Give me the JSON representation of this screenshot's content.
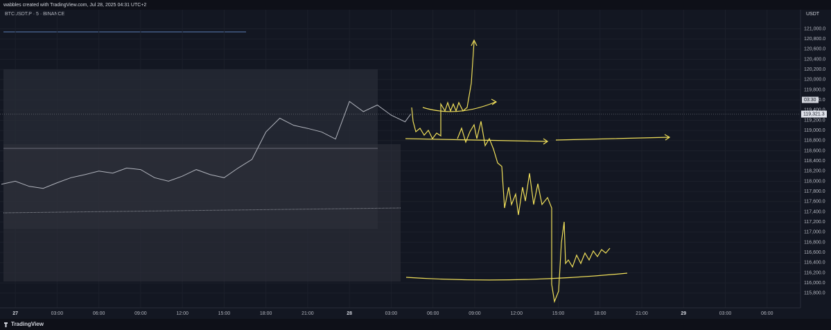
{
  "header": {
    "credit": "wabbles created with TradingView.com, Jul 28, 2025 04:31 UTC+2"
  },
  "chart_data": {
    "type": "line",
    "symbol": "BTCUSDT.P · 5 · BINANCE",
    "currency": "USDT",
    "series": [
      {
        "name": "BTCUSDT.P",
        "color": "#b2b5be",
        "x": [
          -1,
          0,
          1,
          2,
          3,
          4,
          5,
          6,
          7,
          8,
          9,
          10,
          11,
          12,
          13,
          14,
          15,
          16,
          17,
          18,
          19,
          20,
          21,
          22,
          23,
          24,
          25,
          26,
          27,
          28,
          28.4
        ],
        "values": [
          117940,
          118000,
          117900,
          117860,
          117970,
          118070,
          118130,
          118200,
          118160,
          118260,
          118230,
          118070,
          118000,
          118100,
          118230,
          118130,
          118070,
          118260,
          118430,
          118970,
          119240,
          119100,
          119040,
          118970,
          118830,
          119570,
          119370,
          119500,
          119300,
          119170,
          119321.3
        ]
      }
    ],
    "xlim": [
      -1.1,
      56.4
    ],
    "xticks": [
      {
        "value": 0,
        "label": "27"
      },
      {
        "value": 3,
        "label": "03:00"
      },
      {
        "value": 6,
        "label": "06:00"
      },
      {
        "value": 9,
        "label": "09:00"
      },
      {
        "value": 12,
        "label": "12:00"
      },
      {
        "value": 15,
        "label": "15:00"
      },
      {
        "value": 18,
        "label": "18:00"
      },
      {
        "value": 21,
        "label": "21:00"
      },
      {
        "value": 24,
        "label": "28"
      },
      {
        "value": 27,
        "label": "03:00"
      },
      {
        "value": 30,
        "label": "06:00"
      },
      {
        "value": 33,
        "label": "09:00"
      },
      {
        "value": 36,
        "label": "12:00"
      },
      {
        "value": 39,
        "label": "15:00"
      },
      {
        "value": 42,
        "label": "18:00"
      },
      {
        "value": 45,
        "label": "21:00"
      },
      {
        "value": 48,
        "label": "29"
      },
      {
        "value": 51,
        "label": "03:00"
      },
      {
        "value": 54,
        "label": "06:00"
      }
    ],
    "ylim": [
      115510,
      121375
    ],
    "yticks": [
      {
        "value": 115800,
        "label": "115,800.0"
      },
      {
        "value": 116000,
        "label": "116,000.0"
      },
      {
        "value": 116200,
        "label": "116,200.0"
      },
      {
        "value": 116400,
        "label": "116,400.0"
      },
      {
        "value": 116600,
        "label": "116,600.0"
      },
      {
        "value": 116800,
        "label": "116,800.0"
      },
      {
        "value": 117000,
        "label": "117,000.0"
      },
      {
        "value": 117200,
        "label": "117,200.0"
      },
      {
        "value": 117400,
        "label": "117,400.0"
      },
      {
        "value": 117600,
        "label": "117,600.0"
      },
      {
        "value": 117800,
        "label": "117,800.0"
      },
      {
        "value": 118000,
        "label": "118,000.0"
      },
      {
        "value": 118200,
        "label": "118,200.0"
      },
      {
        "value": 118400,
        "label": "118,400.0"
      },
      {
        "value": 118600,
        "label": "118,600.0"
      },
      {
        "value": 118800,
        "label": "118,800.0"
      },
      {
        "value": 119000,
        "label": "119,000.0"
      },
      {
        "value": 119200,
        "label": "119,200.0"
      },
      {
        "value": 119400,
        "label": "119,400.0"
      },
      {
        "value": 119600,
        "label": "119,600.0"
      },
      {
        "value": 119800,
        "label": "119,800.0"
      },
      {
        "value": 120000,
        "label": "120,000.0"
      },
      {
        "value": 120200,
        "label": "120,200.0"
      },
      {
        "value": 120400,
        "label": "120,400.0"
      },
      {
        "value": 120600,
        "label": "120,600.0"
      },
      {
        "value": 120800,
        "label": "120,800.0"
      },
      {
        "value": 121000,
        "label": "121,000.0"
      }
    ],
    "countdown": "03:30",
    "last_price": {
      "value": 119321.3,
      "label": "119,321.3"
    }
  },
  "footer": {
    "brand": "TradingView"
  }
}
